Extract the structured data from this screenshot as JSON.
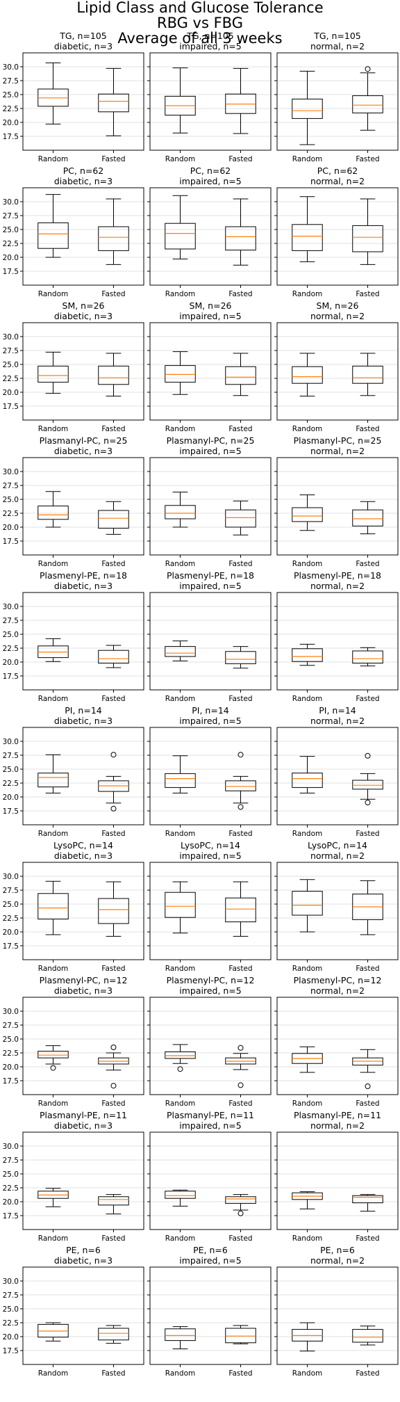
{
  "figure": {
    "title_lines": [
      "Lipid Class and Glucose Tolerance",
      "RBG vs FBG",
      "Average of all 3 weeks"
    ]
  },
  "chart_data": {
    "type": "boxplot",
    "x_categories": [
      "Random",
      "Fasted"
    ],
    "y_ticks": [
      17.5,
      20.0,
      22.5,
      25.0,
      27.5,
      30.0
    ],
    "y_tick_labels": [
      "17.5",
      "20.0",
      "22.5",
      "25.0",
      "27.5",
      "30.0"
    ],
    "ylim": [
      15.0,
      32.5
    ],
    "grid": "horizontal",
    "colors": {
      "box": "#000000",
      "median": "#ff7f0e",
      "grid": "#d9d9d9"
    },
    "groups": [
      "diabetic, n=3",
      "impaired, n=5",
      "normal, n=2"
    ],
    "rows": [
      {
        "lipid": "TG, n=105",
        "panels": [
          {
            "group": "diabetic, n=3",
            "boxes": [
              {
                "label": "Random",
                "whislo": 19.7,
                "q1": 22.9,
                "med": 24.4,
                "q3": 26.0,
                "whishi": 30.7,
                "fliers": []
              },
              {
                "label": "Fasted",
                "whislo": 17.6,
                "q1": 21.9,
                "med": 23.8,
                "q3": 25.1,
                "whishi": 29.7,
                "fliers": []
              }
            ]
          },
          {
            "group": "impaired, n=5",
            "boxes": [
              {
                "label": "Random",
                "whislo": 18.1,
                "q1": 21.3,
                "med": 23.0,
                "q3": 24.7,
                "whishi": 29.8,
                "fliers": []
              },
              {
                "label": "Fasted",
                "whislo": 18.0,
                "q1": 21.6,
                "med": 23.3,
                "q3": 25.1,
                "whishi": 29.7,
                "fliers": []
              }
            ]
          },
          {
            "group": "normal, n=2",
            "boxes": [
              {
                "label": "Random",
                "whislo": 16.0,
                "q1": 20.7,
                "med": 22.1,
                "q3": 24.2,
                "whishi": 29.2,
                "fliers": []
              },
              {
                "label": "Fasted",
                "whislo": 18.6,
                "q1": 21.7,
                "med": 23.1,
                "q3": 24.8,
                "whishi": 28.9,
                "fliers": [
                  29.6
                ]
              }
            ]
          }
        ]
      },
      {
        "lipid": "PC, n=62",
        "panels": [
          {
            "group": "diabetic, n=3",
            "boxes": [
              {
                "label": "Random",
                "whislo": 20.0,
                "q1": 21.6,
                "med": 24.2,
                "q3": 26.2,
                "whishi": 31.3,
                "fliers": []
              },
              {
                "label": "Fasted",
                "whislo": 18.7,
                "q1": 21.2,
                "med": 23.6,
                "q3": 25.5,
                "whishi": 30.5,
                "fliers": []
              }
            ]
          },
          {
            "group": "impaired, n=5",
            "boxes": [
              {
                "label": "Random",
                "whislo": 19.7,
                "q1": 21.5,
                "med": 24.3,
                "q3": 26.1,
                "whishi": 31.1,
                "fliers": []
              },
              {
                "label": "Fasted",
                "whislo": 18.6,
                "q1": 21.3,
                "med": 23.7,
                "q3": 25.5,
                "whishi": 30.5,
                "fliers": []
              }
            ]
          },
          {
            "group": "normal, n=2",
            "boxes": [
              {
                "label": "Random",
                "whislo": 19.2,
                "q1": 21.2,
                "med": 23.8,
                "q3": 25.9,
                "whishi": 30.9,
                "fliers": []
              },
              {
                "label": "Fasted",
                "whislo": 18.7,
                "q1": 21.0,
                "med": 23.6,
                "q3": 25.7,
                "whishi": 30.5,
                "fliers": []
              }
            ]
          }
        ]
      },
      {
        "lipid": "SM, n=26",
        "panels": [
          {
            "group": "diabetic, n=3",
            "boxes": [
              {
                "label": "Random",
                "whislo": 19.8,
                "q1": 21.8,
                "med": 23.0,
                "q3": 24.7,
                "whishi": 27.2,
                "fliers": []
              },
              {
                "label": "Fasted",
                "whislo": 19.3,
                "q1": 21.4,
                "med": 22.6,
                "q3": 24.7,
                "whishi": 27.0,
                "fliers": []
              }
            ]
          },
          {
            "group": "impaired, n=5",
            "boxes": [
              {
                "label": "Random",
                "whislo": 19.6,
                "q1": 21.8,
                "med": 23.2,
                "q3": 24.8,
                "whishi": 27.3,
                "fliers": []
              },
              {
                "label": "Fasted",
                "whislo": 19.4,
                "q1": 21.4,
                "med": 22.7,
                "q3": 24.6,
                "whishi": 27.0,
                "fliers": []
              }
            ]
          },
          {
            "group": "normal, n=2",
            "boxes": [
              {
                "label": "Random",
                "whislo": 19.3,
                "q1": 21.6,
                "med": 22.8,
                "q3": 24.6,
                "whishi": 27.0,
                "fliers": []
              },
              {
                "label": "Fasted",
                "whislo": 19.4,
                "q1": 21.6,
                "med": 22.6,
                "q3": 24.7,
                "whishi": 27.0,
                "fliers": []
              }
            ]
          }
        ]
      },
      {
        "lipid": "Plasmanyl-PC, n=25",
        "panels": [
          {
            "group": "diabetic, n=3",
            "boxes": [
              {
                "label": "Random",
                "whislo": 20.0,
                "q1": 21.4,
                "med": 22.2,
                "q3": 23.8,
                "whishi": 26.4,
                "fliers": []
              },
              {
                "label": "Fasted",
                "whislo": 18.7,
                "q1": 19.8,
                "med": 21.6,
                "q3": 23.0,
                "whishi": 24.6,
                "fliers": []
              }
            ]
          },
          {
            "group": "impaired, n=5",
            "boxes": [
              {
                "label": "Random",
                "whislo": 20.0,
                "q1": 21.5,
                "med": 22.5,
                "q3": 23.9,
                "whishi": 26.3,
                "fliers": []
              },
              {
                "label": "Fasted",
                "whislo": 18.6,
                "q1": 20.0,
                "med": 21.7,
                "q3": 23.1,
                "whishi": 24.7,
                "fliers": []
              }
            ]
          },
          {
            "group": "normal, n=2",
            "boxes": [
              {
                "label": "Random",
                "whislo": 19.4,
                "q1": 21.0,
                "med": 22.0,
                "q3": 23.5,
                "whishi": 25.8,
                "fliers": []
              },
              {
                "label": "Fasted",
                "whislo": 18.8,
                "q1": 20.2,
                "med": 21.5,
                "q3": 23.1,
                "whishi": 24.6,
                "fliers": []
              }
            ]
          }
        ]
      },
      {
        "lipid": "Plasmenyl-PE, n=18",
        "panels": [
          {
            "group": "diabetic, n=3",
            "boxes": [
              {
                "label": "Random",
                "whislo": 20.1,
                "q1": 20.8,
                "med": 21.8,
                "q3": 22.9,
                "whishi": 24.2,
                "fliers": []
              },
              {
                "label": "Fasted",
                "whislo": 19.0,
                "q1": 19.8,
                "med": 20.6,
                "q3": 22.1,
                "whishi": 23.0,
                "fliers": []
              }
            ]
          },
          {
            "group": "impaired, n=5",
            "boxes": [
              {
                "label": "Random",
                "whislo": 20.2,
                "q1": 21.0,
                "med": 21.6,
                "q3": 22.8,
                "whishi": 23.8,
                "fliers": []
              },
              {
                "label": "Fasted",
                "whislo": 18.9,
                "q1": 19.7,
                "med": 20.5,
                "q3": 21.9,
                "whishi": 22.8,
                "fliers": []
              }
            ]
          },
          {
            "group": "normal, n=2",
            "boxes": [
              {
                "label": "Random",
                "whislo": 19.4,
                "q1": 20.1,
                "med": 21.0,
                "q3": 22.4,
                "whishi": 23.2,
                "fliers": []
              },
              {
                "label": "Fasted",
                "whislo": 19.3,
                "q1": 19.8,
                "med": 20.6,
                "q3": 22.0,
                "whishi": 22.6,
                "fliers": []
              }
            ]
          }
        ]
      },
      {
        "lipid": "PI, n=14",
        "panels": [
          {
            "group": "diabetic, n=3",
            "boxes": [
              {
                "label": "Random",
                "whislo": 20.7,
                "q1": 21.8,
                "med": 23.5,
                "q3": 24.3,
                "whishi": 27.6,
                "fliers": []
              },
              {
                "label": "Fasted",
                "whislo": 18.9,
                "q1": 21.0,
                "med": 22.0,
                "q3": 22.9,
                "whishi": 23.7,
                "fliers": [
                  27.6,
                  17.9
                ]
              }
            ]
          },
          {
            "group": "impaired, n=5",
            "boxes": [
              {
                "label": "Random",
                "whislo": 20.7,
                "q1": 21.7,
                "med": 23.3,
                "q3": 24.2,
                "whishi": 27.4,
                "fliers": []
              },
              {
                "label": "Fasted",
                "whislo": 18.9,
                "q1": 21.1,
                "med": 21.9,
                "q3": 22.9,
                "whishi": 23.7,
                "fliers": [
                  27.6,
                  18.2
                ]
              }
            ]
          },
          {
            "group": "normal, n=2",
            "boxes": [
              {
                "label": "Random",
                "whislo": 20.7,
                "q1": 21.7,
                "med": 23.3,
                "q3": 24.3,
                "whishi": 27.3,
                "fliers": []
              },
              {
                "label": "Fasted",
                "whislo": 19.6,
                "q1": 21.4,
                "med": 22.1,
                "q3": 23.0,
                "whishi": 24.2,
                "fliers": [
                  27.4,
                  19.0
                ]
              }
            ]
          }
        ]
      },
      {
        "lipid": "LysoPC, n=14",
        "panels": [
          {
            "group": "diabetic, n=3",
            "boxes": [
              {
                "label": "Random",
                "whislo": 19.5,
                "q1": 22.3,
                "med": 24.3,
                "q3": 26.9,
                "whishi": 29.1,
                "fliers": []
              },
              {
                "label": "Fasted",
                "whislo": 19.2,
                "q1": 21.5,
                "med": 24.0,
                "q3": 26.0,
                "whishi": 29.0,
                "fliers": []
              }
            ]
          },
          {
            "group": "impaired, n=5",
            "boxes": [
              {
                "label": "Random",
                "whislo": 19.8,
                "q1": 22.6,
                "med": 24.6,
                "q3": 27.1,
                "whishi": 29.0,
                "fliers": []
              },
              {
                "label": "Fasted",
                "whislo": 19.2,
                "q1": 21.8,
                "med": 24.1,
                "q3": 26.1,
                "whishi": 29.0,
                "fliers": []
              }
            ]
          },
          {
            "group": "normal, n=2",
            "boxes": [
              {
                "label": "Random",
                "whislo": 20.0,
                "q1": 23.0,
                "med": 24.8,
                "q3": 27.3,
                "whishi": 29.4,
                "fliers": []
              },
              {
                "label": "Fasted",
                "whislo": 19.5,
                "q1": 22.2,
                "med": 24.5,
                "q3": 26.8,
                "whishi": 29.2,
                "fliers": []
              }
            ]
          }
        ]
      },
      {
        "lipid": "Plasmenyl-PC, n=12",
        "panels": [
          {
            "group": "diabetic, n=3",
            "boxes": [
              {
                "label": "Random",
                "whislo": 20.5,
                "q1": 21.6,
                "med": 22.1,
                "q3": 22.8,
                "whishi": 23.8,
                "fliers": [
                  19.8
                ]
              },
              {
                "label": "Fasted",
                "whislo": 19.4,
                "q1": 20.5,
                "med": 21.0,
                "q3": 21.6,
                "whishi": 22.5,
                "fliers": [
                  23.5,
                  16.6
                ]
              }
            ]
          },
          {
            "group": "impaired, n=5",
            "boxes": [
              {
                "label": "Random",
                "whislo": 20.6,
                "q1": 21.5,
                "med": 22.0,
                "q3": 22.7,
                "whishi": 24.0,
                "fliers": [
                  19.6
                ]
              },
              {
                "label": "Fasted",
                "whislo": 19.5,
                "q1": 20.5,
                "med": 21.0,
                "q3": 21.6,
                "whishi": 22.4,
                "fliers": [
                  23.4,
                  16.7
                ]
              }
            ]
          },
          {
            "group": "normal, n=2",
            "boxes": [
              {
                "label": "Random",
                "whislo": 19.0,
                "q1": 20.6,
                "med": 21.5,
                "q3": 22.4,
                "whishi": 23.6,
                "fliers": []
              },
              {
                "label": "Fasted",
                "whislo": 19.0,
                "q1": 20.3,
                "med": 21.0,
                "q3": 21.6,
                "whishi": 23.1,
                "fliers": [
                  16.5
                ]
              }
            ]
          }
        ]
      },
      {
        "lipid": "Plasmanyl-PE, n=11",
        "panels": [
          {
            "group": "diabetic, n=3",
            "boxes": [
              {
                "label": "Random",
                "whislo": 19.1,
                "q1": 20.6,
                "med": 21.2,
                "q3": 21.9,
                "whishi": 22.4,
                "fliers": []
              },
              {
                "label": "Fasted",
                "whislo": 17.8,
                "q1": 19.4,
                "med": 20.4,
                "q3": 20.9,
                "whishi": 21.3,
                "fliers": []
              }
            ]
          },
          {
            "group": "impaired, n=5",
            "boxes": [
              {
                "label": "Random",
                "whislo": 19.2,
                "q1": 20.6,
                "med": 21.1,
                "q3": 21.9,
                "whishi": 22.1,
                "fliers": []
              },
              {
                "label": "Fasted",
                "whislo": 18.5,
                "q1": 19.7,
                "med": 20.5,
                "q3": 20.9,
                "whishi": 21.3,
                "fliers": [
                  17.9
                ]
              }
            ]
          },
          {
            "group": "normal, n=2",
            "boxes": [
              {
                "label": "Random",
                "whislo": 18.7,
                "q1": 20.4,
                "med": 21.0,
                "q3": 21.6,
                "whishi": 21.8,
                "fliers": []
              },
              {
                "label": "Fasted",
                "whislo": 18.3,
                "q1": 19.8,
                "med": 20.8,
                "q3": 21.1,
                "whishi": 21.3,
                "fliers": []
              }
            ]
          }
        ]
      },
      {
        "lipid": "PE, n=6",
        "panels": [
          {
            "group": "diabetic, n=3",
            "boxes": [
              {
                "label": "Random",
                "whislo": 19.2,
                "q1": 19.9,
                "med": 21.0,
                "q3": 22.2,
                "whishi": 22.5,
                "fliers": []
              },
              {
                "label": "Fasted",
                "whislo": 18.8,
                "q1": 19.4,
                "med": 20.6,
                "q3": 21.5,
                "whishi": 22.0,
                "fliers": []
              }
            ]
          },
          {
            "group": "impaired, n=5",
            "boxes": [
              {
                "label": "Random",
                "whislo": 17.8,
                "q1": 19.3,
                "med": 20.2,
                "q3": 21.4,
                "whishi": 21.8,
                "fliers": []
              },
              {
                "label": "Fasted",
                "whislo": 18.7,
                "q1": 18.9,
                "med": 20.1,
                "q3": 21.5,
                "whishi": 22.0,
                "fliers": []
              }
            ]
          },
          {
            "group": "normal, n=2",
            "boxes": [
              {
                "label": "Random",
                "whislo": 17.4,
                "q1": 19.2,
                "med": 20.2,
                "q3": 21.3,
                "whishi": 22.5,
                "fliers": []
              },
              {
                "label": "Fasted",
                "whislo": 18.5,
                "q1": 19.0,
                "med": 19.9,
                "q3": 21.3,
                "whishi": 21.9,
                "fliers": []
              }
            ]
          }
        ]
      }
    ]
  }
}
